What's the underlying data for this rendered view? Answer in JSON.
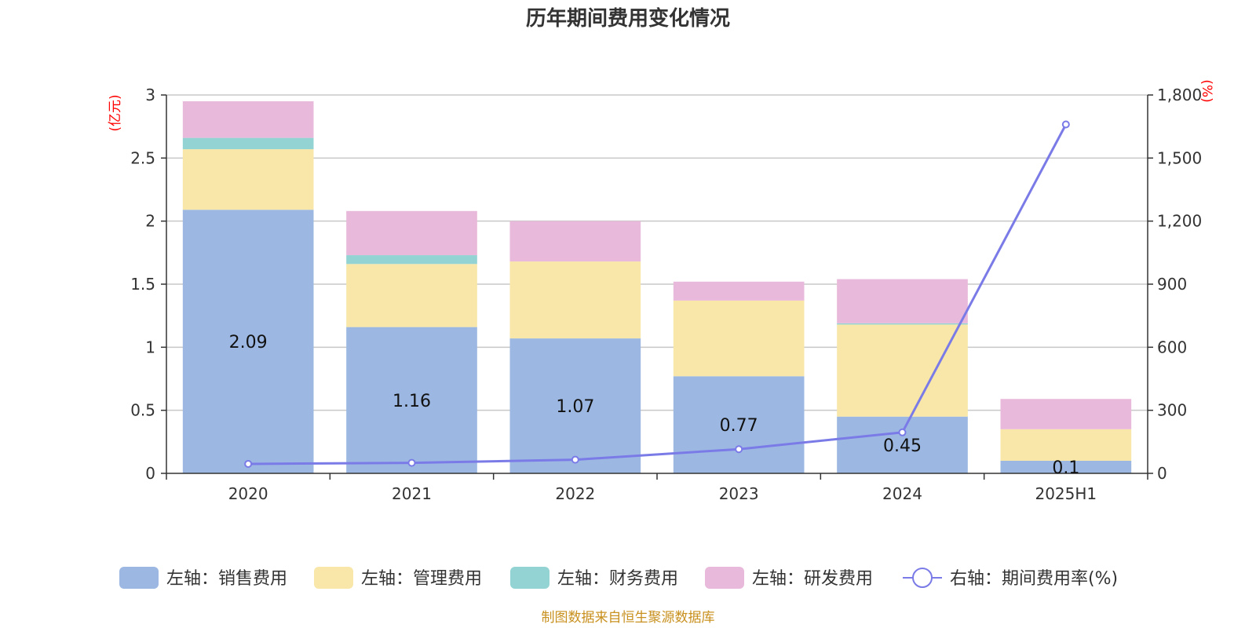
{
  "chart_data": {
    "type": "bar",
    "stacked": true,
    "title": "历年期间费用变化情况",
    "categories": [
      "2020",
      "2021",
      "2022",
      "2023",
      "2024",
      "2025H1"
    ],
    "left_axis": {
      "unit": "(亿元)",
      "ylim": [
        0,
        3
      ],
      "ticks": [
        0,
        0.5,
        1,
        1.5,
        2,
        2.5,
        3
      ],
      "tick_labels": [
        "0",
        "0.5",
        "1",
        "1.5",
        "2",
        "2.5",
        "3"
      ]
    },
    "right_axis": {
      "unit": "(%)",
      "ylim": [
        0,
        1800
      ],
      "ticks": [
        0,
        300,
        600,
        900,
        1200,
        1500,
        1800
      ],
      "tick_labels": [
        "0",
        "300",
        "600",
        "900",
        "1,200",
        "1,500",
        "1,800"
      ]
    },
    "series": [
      {
        "name": "左轴：销售费用",
        "axis": "left",
        "kind": "bar",
        "color": "#9cb8e2",
        "values": [
          2.09,
          1.16,
          1.07,
          0.77,
          0.45,
          0.1
        ],
        "labels": [
          "2.09",
          "1.16",
          "1.07",
          "0.77",
          "0.45",
          "0.1"
        ]
      },
      {
        "name": "左轴：管理费用",
        "axis": "left",
        "kind": "bar",
        "color": "#f8e7a8",
        "values": [
          0.48,
          0.5,
          0.61,
          0.6,
          0.73,
          0.25
        ]
      },
      {
        "name": "左轴：财务费用",
        "axis": "left",
        "kind": "bar",
        "color": "#94d3d3",
        "values": [
          0.09,
          0.07,
          0.0,
          0.0,
          0.01,
          0.0
        ]
      },
      {
        "name": "左轴：研发费用",
        "axis": "left",
        "kind": "bar",
        "color": "#e8b9da",
        "values": [
          0.29,
          0.35,
          0.32,
          0.15,
          0.35,
          0.24
        ]
      },
      {
        "name": "右轴：期间费用率(%)",
        "axis": "right",
        "kind": "line",
        "color": "#7b7be8",
        "values": [
          45,
          50,
          65,
          115,
          195,
          1660
        ]
      }
    ],
    "grid": true,
    "legend_position": "bottom"
  },
  "source_note": "制图数据来自恒生聚源数据库"
}
